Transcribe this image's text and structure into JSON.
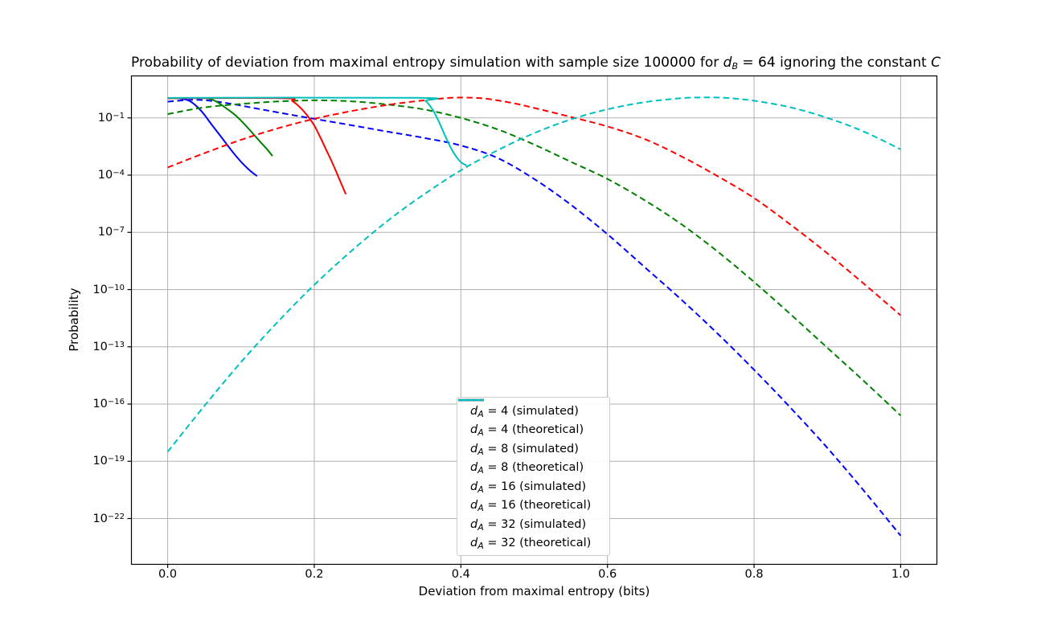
{
  "title_parts": {
    "pre": "Probability of deviation from maximal entropy simulation with sample size 100000 for ",
    "var1": "d",
    "sub1": "B",
    "mid": " = 64 ignoring the constant ",
    "var2": "C"
  },
  "chart_data": {
    "type": "line",
    "title": "Probability of deviation from maximal entropy simulation with sample size 100000 for d_B = 64 ignoring the constant C",
    "xlabel": "Deviation from maximal entropy (bits)",
    "ylabel": "Probability",
    "x_ticks": {
      "values": [
        0.0,
        0.2,
        0.4,
        0.6,
        0.8,
        1.0
      ],
      "labels": [
        "0.0",
        "0.2",
        "0.4",
        "0.6",
        "0.8",
        "1.0"
      ]
    },
    "y_scale": "log10",
    "y_tick_exponents": [
      -1,
      -4,
      -7,
      -10,
      -13,
      -16,
      -19,
      -22
    ],
    "xlim": [
      -0.05,
      1.05
    ],
    "ylim_log10": [
      -24.4,
      1.2
    ],
    "grid": true,
    "legend_location": "lower center",
    "colors": {
      "blue": "#0000ff",
      "green": "#008000",
      "red": "#ff0000",
      "cyan": "#00bfbf",
      "grid": "#b0b0b0",
      "spine": "#000000",
      "legend_border": "#cccccc",
      "text": "#000000",
      "background": "#ffffff"
    },
    "series": [
      {
        "key": "da4-simulated",
        "label_var": "d",
        "label_sub": "A",
        "label_rest": " = 4 (simulated)",
        "color": "blue",
        "style": "solid",
        "points_log10": [
          [
            0,
            0.03
          ],
          [
            0.015,
            0.03
          ],
          [
            0.03,
            -0.12
          ],
          [
            0.045,
            -0.6
          ],
          [
            0.06,
            -1.35
          ],
          [
            0.075,
            -2.1
          ],
          [
            0.09,
            -2.85
          ],
          [
            0.105,
            -3.5
          ],
          [
            0.115,
            -3.85
          ],
          [
            0.122,
            -4.05
          ]
        ]
      },
      {
        "key": "da4-theoretical",
        "label_var": "d",
        "label_sub": "A",
        "label_rest": " = 4 (theoretical)",
        "color": "blue",
        "style": "dashed",
        "points_log10": [
          [
            0,
            -0.15
          ],
          [
            0.04,
            -0.05
          ],
          [
            0.08,
            -0.22
          ],
          [
            0.12,
            -0.5
          ],
          [
            0.16,
            -0.78
          ],
          [
            0.2,
            -1.05
          ],
          [
            0.25,
            -1.38
          ],
          [
            0.3,
            -1.72
          ],
          [
            0.35,
            -2.05
          ],
          [
            0.4,
            -2.45
          ],
          [
            0.45,
            -3.1
          ],
          [
            0.5,
            -4.2
          ],
          [
            0.55,
            -5.55
          ],
          [
            0.6,
            -7.1
          ],
          [
            0.65,
            -8.8
          ],
          [
            0.7,
            -10.5
          ],
          [
            0.75,
            -12.3
          ],
          [
            0.8,
            -14.2
          ],
          [
            0.85,
            -16.2
          ],
          [
            0.9,
            -18.3
          ],
          [
            0.95,
            -20.55
          ],
          [
            1.0,
            -22.9
          ]
        ]
      },
      {
        "key": "da8-simulated",
        "label_var": "d",
        "label_sub": "A",
        "label_rest": " = 8 (simulated)",
        "color": "green",
        "style": "solid",
        "points_log10": [
          [
            0,
            0.03
          ],
          [
            0.05,
            0.03
          ],
          [
            0.065,
            -0.12
          ],
          [
            0.08,
            -0.5
          ],
          [
            0.095,
            -0.95
          ],
          [
            0.11,
            -1.55
          ],
          [
            0.125,
            -2.2
          ],
          [
            0.135,
            -2.62
          ],
          [
            0.143,
            -3.0
          ]
        ]
      },
      {
        "key": "da8-theoretical",
        "label_var": "d",
        "label_sub": "A",
        "label_rest": " = 8 (theoretical)",
        "color": "green",
        "style": "dashed",
        "points_log10": [
          [
            0,
            -0.8
          ],
          [
            0.05,
            -0.45
          ],
          [
            0.1,
            -0.27
          ],
          [
            0.15,
            -0.14
          ],
          [
            0.2,
            -0.08
          ],
          [
            0.25,
            -0.13
          ],
          [
            0.3,
            -0.3
          ],
          [
            0.35,
            -0.56
          ],
          [
            0.4,
            -1.0
          ],
          [
            0.45,
            -1.6
          ],
          [
            0.5,
            -2.4
          ],
          [
            0.55,
            -3.3
          ],
          [
            0.6,
            -4.2
          ],
          [
            0.65,
            -5.3
          ],
          [
            0.7,
            -6.55
          ],
          [
            0.75,
            -8.0
          ],
          [
            0.8,
            -9.6
          ],
          [
            0.85,
            -11.3
          ],
          [
            0.9,
            -13.05
          ],
          [
            0.95,
            -14.8
          ],
          [
            1.0,
            -16.6
          ]
        ]
      },
      {
        "key": "da16-simulated",
        "label_var": "d",
        "label_sub": "A",
        "label_rest": " = 16 (simulated)",
        "color": "red",
        "style": "solid",
        "points_log10": [
          [
            0,
            0.03
          ],
          [
            0.158,
            0.03
          ],
          [
            0.17,
            -0.12
          ],
          [
            0.182,
            -0.5
          ],
          [
            0.192,
            -0.95
          ],
          [
            0.2,
            -1.4
          ],
          [
            0.208,
            -2.0
          ],
          [
            0.216,
            -2.65
          ],
          [
            0.224,
            -3.3
          ],
          [
            0.233,
            -4.1
          ],
          [
            0.243,
            -5.0
          ]
        ]
      },
      {
        "key": "da16-theoretical",
        "label_var": "d",
        "label_sub": "A",
        "label_rest": " = 16 (theoretical)",
        "color": "red",
        "style": "dashed",
        "points_log10": [
          [
            0,
            -3.6
          ],
          [
            0.05,
            -2.85
          ],
          [
            0.1,
            -2.15
          ],
          [
            0.15,
            -1.55
          ],
          [
            0.2,
            -1.05
          ],
          [
            0.25,
            -0.65
          ],
          [
            0.3,
            -0.32
          ],
          [
            0.35,
            -0.08
          ],
          [
            0.39,
            0.06
          ],
          [
            0.43,
            0.02
          ],
          [
            0.47,
            -0.22
          ],
          [
            0.5,
            -0.48
          ],
          [
            0.55,
            -0.95
          ],
          [
            0.6,
            -1.45
          ],
          [
            0.65,
            -2.1
          ],
          [
            0.7,
            -3.0
          ],
          [
            0.75,
            -4.05
          ],
          [
            0.8,
            -5.2
          ],
          [
            0.85,
            -6.6
          ],
          [
            0.9,
            -8.1
          ],
          [
            0.95,
            -9.7
          ],
          [
            1.0,
            -11.35
          ]
        ]
      },
      {
        "key": "da32-simulated",
        "label_var": "d",
        "label_sub": "A",
        "label_rest": " = 32 (simulated)",
        "color": "cyan",
        "style": "solid",
        "points_log10": [
          [
            0,
            0.05
          ],
          [
            0.34,
            0.05
          ],
          [
            0.352,
            -0.12
          ],
          [
            0.362,
            -0.6
          ],
          [
            0.37,
            -1.2
          ],
          [
            0.378,
            -1.9
          ],
          [
            0.386,
            -2.55
          ],
          [
            0.394,
            -3.05
          ],
          [
            0.401,
            -3.35
          ],
          [
            0.408,
            -3.5
          ]
        ]
      },
      {
        "key": "da32-theoretical",
        "label_var": "d",
        "label_sub": "A",
        "label_rest": " = 32 (theoretical)",
        "color": "cyan",
        "style": "dashed",
        "points_log10": [
          [
            0,
            -18.5
          ],
          [
            0.05,
            -16.1
          ],
          [
            0.1,
            -13.8
          ],
          [
            0.15,
            -11.7
          ],
          [
            0.2,
            -9.75
          ],
          [
            0.25,
            -8.0
          ],
          [
            0.3,
            -6.4
          ],
          [
            0.35,
            -5.0
          ],
          [
            0.4,
            -3.75
          ],
          [
            0.45,
            -2.7
          ],
          [
            0.5,
            -1.8
          ],
          [
            0.55,
            -1.08
          ],
          [
            0.6,
            -0.55
          ],
          [
            0.65,
            -0.18
          ],
          [
            0.7,
            0.03
          ],
          [
            0.73,
            0.07
          ],
          [
            0.76,
            0.05
          ],
          [
            0.8,
            -0.1
          ],
          [
            0.85,
            -0.45
          ],
          [
            0.9,
            -1.0
          ],
          [
            0.95,
            -1.72
          ],
          [
            1.0,
            -2.65
          ]
        ]
      }
    ]
  }
}
